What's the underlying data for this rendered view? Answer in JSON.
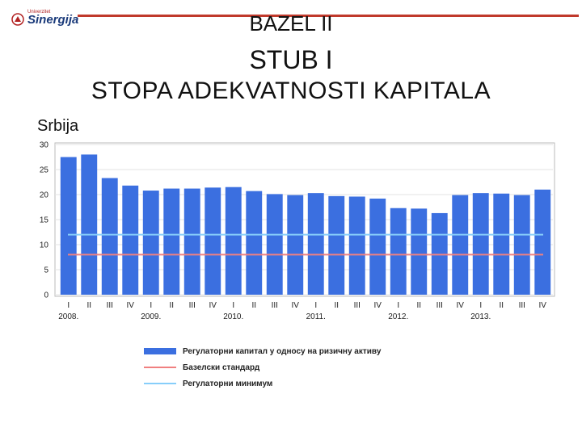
{
  "logo": {
    "top_text": "Univerzitet",
    "name": "Sinergija"
  },
  "header": {
    "title": "BAZEL II",
    "subtitle": "STUB I",
    "heading": "STOPA ADEKVATNOSTI KAPITALA",
    "country": "Srbija"
  },
  "colors": {
    "bar": "#3b6fe0",
    "basel": "#f08080",
    "minimum": "#87cefa",
    "accent": "#c0392b"
  },
  "chart_data": {
    "type": "bar",
    "title": "",
    "xlabel": "",
    "ylabel": "",
    "ylim": [
      0,
      30
    ],
    "yticks": [
      0,
      5,
      10,
      15,
      20,
      25,
      30
    ],
    "grid": true,
    "legend_position": "bottom",
    "categories": [
      "I",
      "II",
      "III",
      "IV",
      "I",
      "II",
      "III",
      "IV",
      "I",
      "II",
      "III",
      "IV",
      "I",
      "II",
      "III",
      "IV",
      "I",
      "II",
      "III",
      "IV",
      "I",
      "II",
      "III",
      "IV"
    ],
    "years": [
      "2008.",
      "2009.",
      "2010.",
      "2011.",
      "2012.",
      "2013."
    ],
    "series": [
      {
        "name": "Регулаторни капитал у односу на ризичну активу",
        "values": [
          27.5,
          28.0,
          23.3,
          21.8,
          20.8,
          21.2,
          21.2,
          21.4,
          21.5,
          20.7,
          20.1,
          19.9,
          20.3,
          19.7,
          19.6,
          19.2,
          17.3,
          17.2,
          16.3,
          19.9,
          20.3,
          20.2,
          19.9,
          21.0
        ]
      },
      {
        "name": "Базелски стандард",
        "value": 8
      },
      {
        "name": "Регулаторни минимум",
        "value": 12
      }
    ]
  }
}
